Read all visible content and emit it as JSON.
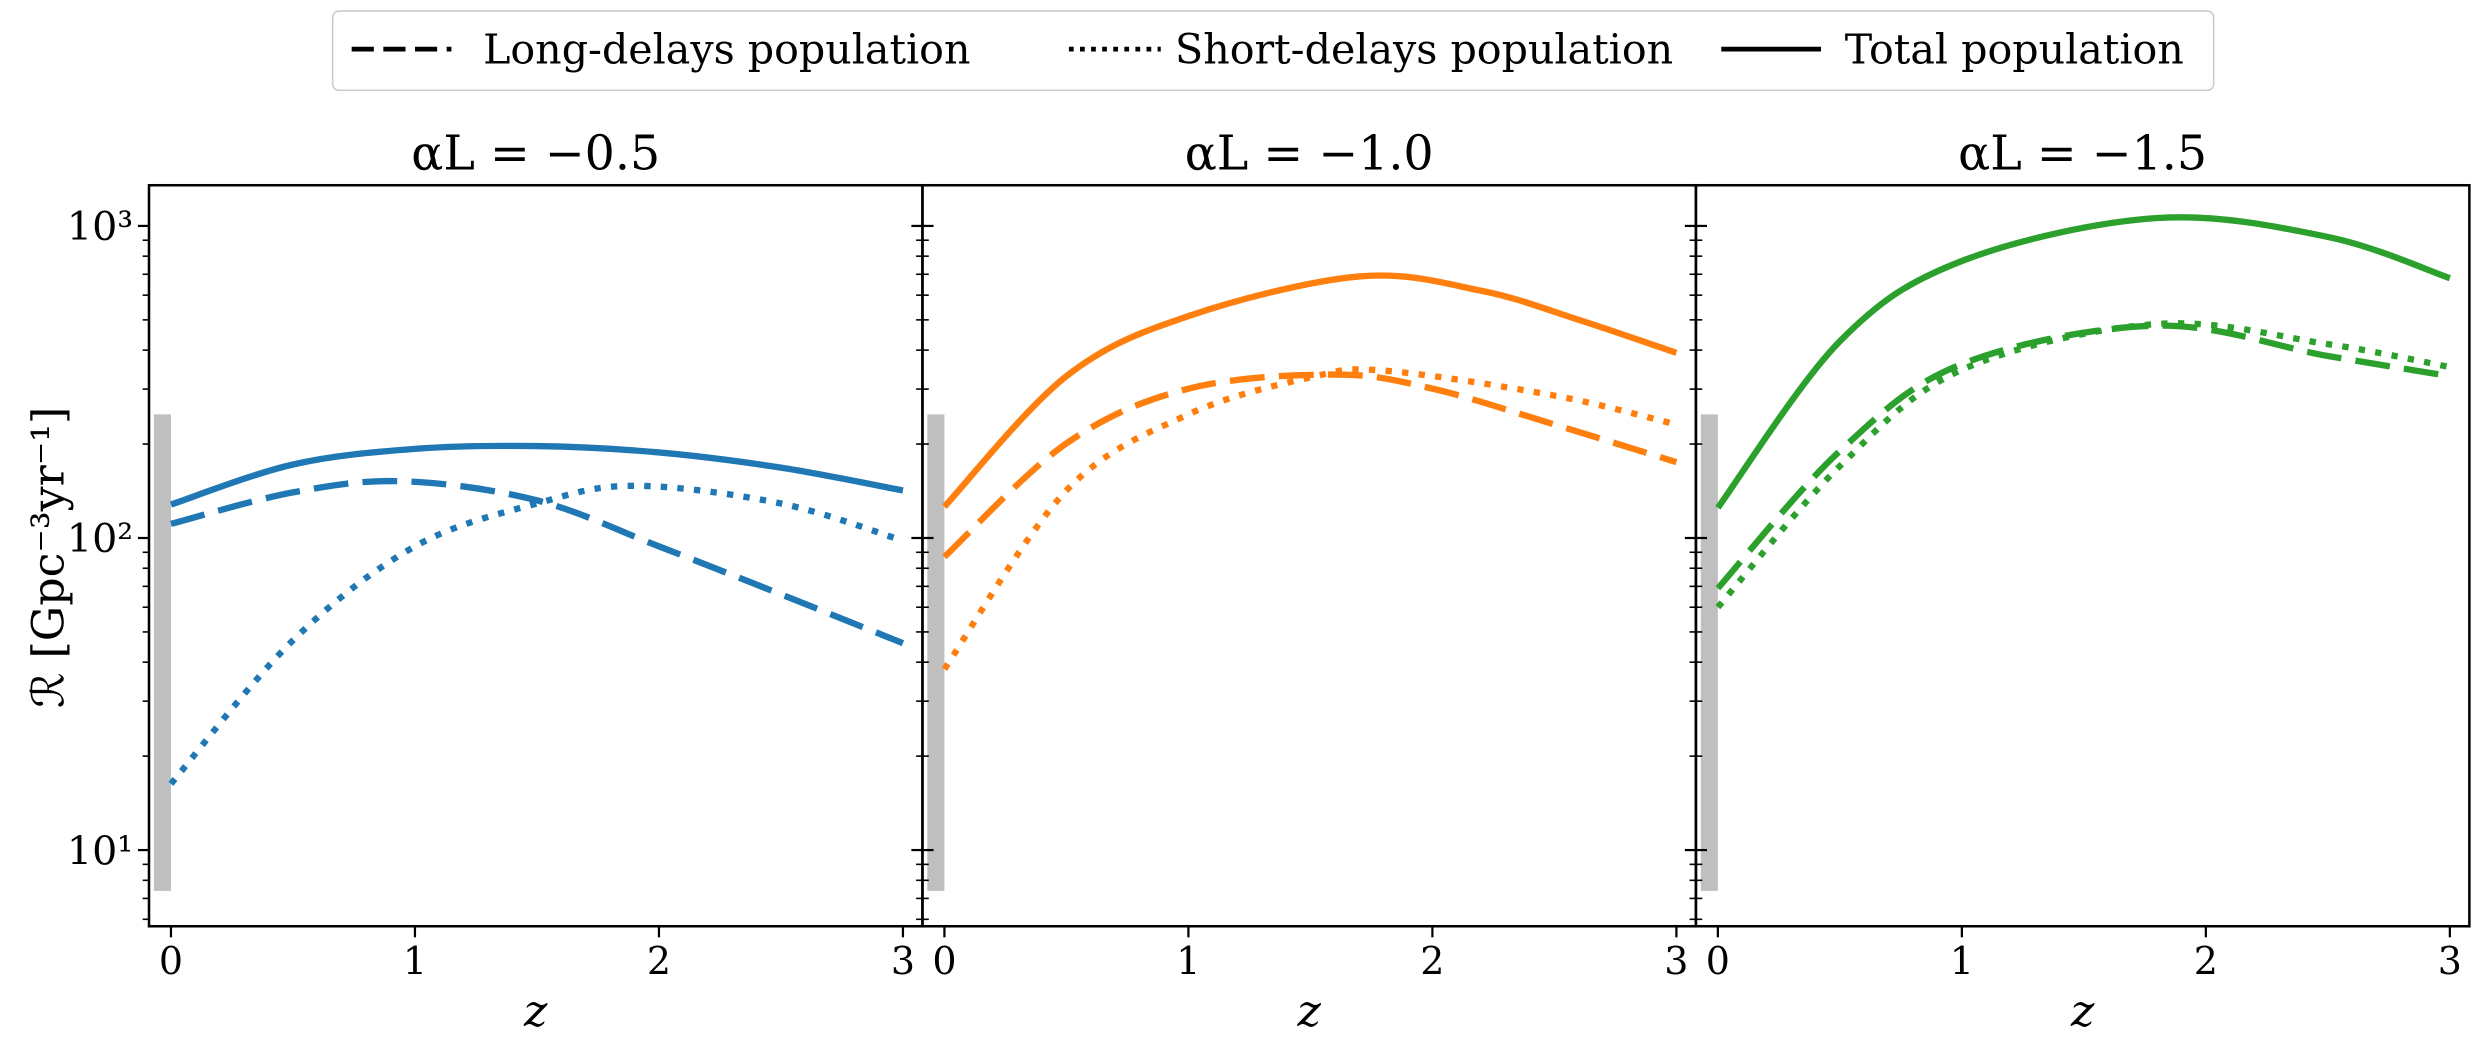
{
  "chart_data": {
    "type": "line",
    "layout": "three panels side by side, shared log y-axis",
    "ylabel": "ℛ [Gpc⁻³yr⁻¹]",
    "y_scale": "log",
    "ylim": [
      5.7,
      1350
    ],
    "y_ticks": [
      {
        "value": 10,
        "label": "10¹"
      },
      {
        "value": 100,
        "label": "10²"
      },
      {
        "value": 1000,
        "label": "10³"
      }
    ],
    "xlabel": "z",
    "xlim": [
      -0.09,
      3.08
    ],
    "x_ticks": [
      "0",
      "1",
      "2",
      "3"
    ],
    "grid": false,
    "legend": {
      "placement": "top-center, above panels",
      "entries": [
        {
          "label": "Long-delays population",
          "style": "dashed"
        },
        {
          "label": "Short-delays population",
          "style": "dotted"
        },
        {
          "label": "Total population",
          "style": "solid"
        }
      ]
    },
    "shaded_band": {
      "z": [
        -0.07,
        0.0
      ],
      "R": [
        7.4,
        249
      ],
      "color": "#bfbfbf"
    },
    "panels": [
      {
        "title": "αL = −0.5",
        "color": "#1f77b4",
        "series": [
          {
            "name": "Total population",
            "style": "solid",
            "x": [
              0,
              0.5,
              1.0,
              1.5,
              2.0,
              2.5,
              3.0
            ],
            "values": [
              128,
              172,
              193,
              197,
              188,
              168,
              142
            ]
          },
          {
            "name": "Long-delays population",
            "style": "dashed",
            "x": [
              0,
              0.5,
              0.95,
              1.5,
              2.0,
              2.5,
              3.0
            ],
            "values": [
              111,
              140,
              152,
              132,
              94,
              66,
              46
            ]
          },
          {
            "name": "Short-delays population",
            "style": "dotted",
            "x": [
              0,
              0.5,
              1.0,
              1.5,
              1.9,
              2.5,
              3.0
            ],
            "values": [
              16.3,
              47,
              94,
              129,
              147,
              129,
              98
            ]
          }
        ]
      },
      {
        "title": "αL = −1.0",
        "color": "#ff7f0e",
        "series": [
          {
            "name": "Total population",
            "style": "solid",
            "x": [
              0,
              0.5,
              1.0,
              1.7,
              2.2,
              2.6,
              3.0
            ],
            "values": [
              126,
              330,
              514,
              689,
              620,
              500,
              392
            ]
          },
          {
            "name": "Long-delays population",
            "style": "dashed",
            "x": [
              0,
              0.5,
              1.0,
              1.6,
              2.0,
              2.5,
              3.0
            ],
            "values": [
              87,
              201,
              301,
              334,
              301,
              231,
              175
            ]
          },
          {
            "name": "Short-delays population",
            "style": "dotted",
            "x": [
              0,
              0.5,
              1.0,
              1.5,
              1.8,
              2.5,
              3.0
            ],
            "values": [
              38,
              142,
              249,
              327,
              344,
              286,
              231
            ]
          }
        ]
      },
      {
        "title": "αL = −1.5",
        "color": "#2ca02c",
        "series": [
          {
            "name": "Total population",
            "style": "solid",
            "x": [
              0,
              0.5,
              1.0,
              1.8,
              2.5,
              3.0
            ],
            "values": [
              125,
              427,
              772,
              1060,
              922,
              680
            ]
          },
          {
            "name": "Long-delays population",
            "style": "dashed",
            "x": [
              0,
              0.5,
              1.0,
              1.8,
              2.5,
              3.0
            ],
            "values": [
              69,
              190,
              361,
              479,
              383,
              330
            ]
          },
          {
            "name": "Short-delays population",
            "style": "dotted",
            "x": [
              0,
              0.5,
              1.0,
              1.8,
              2.5,
              3.0
            ],
            "values": [
              60,
              170,
              346,
              485,
              418,
              353
            ]
          }
        ]
      }
    ]
  }
}
